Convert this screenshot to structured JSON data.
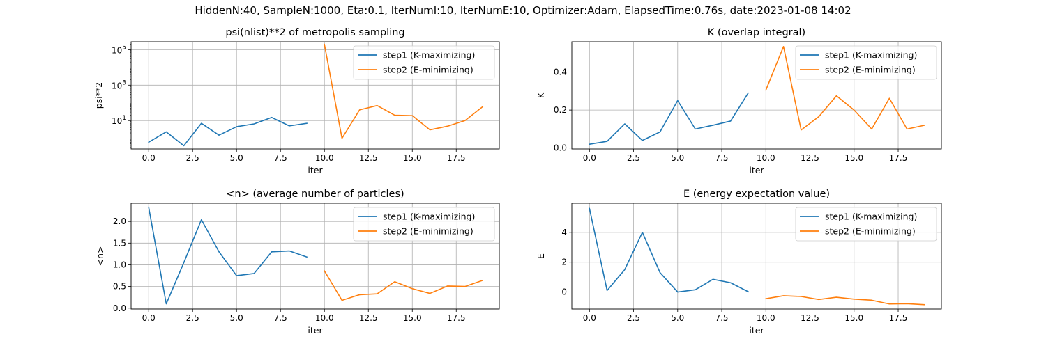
{
  "suptitle": "HiddenN:40, SampleN:1000, Eta:0.1, IterNumI:10, IterNumE:10, Optimizer:Adam, ElapsedTime:0.76s, date:2023-01-08  14:02",
  "colors": {
    "step1": "#1f77b4",
    "step2": "#ff7f0e",
    "grid": "#b0b0b0"
  },
  "chart_data": [
    {
      "type": "line",
      "title": "psi(nlist)**2 of metropolis sampling",
      "xlabel": "iter",
      "ylabel": "psi**2",
      "yscale": "log",
      "xlim": [
        -1,
        19.95
      ],
      "ylim": [
        0.25,
        280000
      ],
      "xticks": [
        0,
        2.5,
        5,
        7.5,
        10,
        12.5,
        15,
        17.5
      ],
      "xtick_labels": [
        "0.0",
        "2.5",
        "5.0",
        "7.5",
        "10.0",
        "12.5",
        "15.0",
        "17.5"
      ],
      "yticks": [
        10,
        1000,
        100000
      ],
      "ytick_labels": [
        "10^1",
        "10^3",
        "10^5"
      ],
      "grid": true,
      "legend_position": "upper right",
      "series": [
        {
          "name": "step1 (K-maximizing)",
          "color": "#1f77b4",
          "x": [
            0,
            1,
            2,
            3,
            4,
            5,
            6,
            7,
            8,
            9
          ],
          "y": [
            0.6,
            2.3,
            0.38,
            7.0,
            1.5,
            4.5,
            6.5,
            15,
            5.0,
            7.0
          ]
        },
        {
          "name": "step2 (E-minimizing)",
          "color": "#ff7f0e",
          "x": [
            10,
            11,
            12,
            13,
            14,
            15,
            16,
            17,
            18,
            19
          ],
          "y": [
            200000,
            1.0,
            40,
            70,
            20,
            19,
            3.0,
            4.8,
            10,
            60
          ]
        }
      ]
    },
    {
      "type": "line",
      "title": "K (overlap integral)",
      "xlabel": "iter",
      "ylabel": "K",
      "yscale": "linear",
      "xlim": [
        -1,
        19.95
      ],
      "ylim": [
        -0.005,
        0.56
      ],
      "xticks": [
        0,
        2.5,
        5,
        7.5,
        10,
        12.5,
        15,
        17.5
      ],
      "xtick_labels": [
        "0.0",
        "2.5",
        "5.0",
        "7.5",
        "10.0",
        "12.5",
        "15.0",
        "17.5"
      ],
      "yticks": [
        0,
        0.2,
        0.4
      ],
      "ytick_labels": [
        "0.0",
        "0.2",
        "0.4"
      ],
      "grid": true,
      "legend_position": "upper right",
      "series": [
        {
          "name": "step1 (K-maximizing)",
          "color": "#1f77b4",
          "x": [
            0,
            1,
            2,
            3,
            4,
            5,
            6,
            7,
            8,
            9
          ],
          "y": [
            0.02,
            0.035,
            0.127,
            0.04,
            0.085,
            0.25,
            0.1,
            0.12,
            0.142,
            0.29
          ]
        },
        {
          "name": "step2 (E-minimizing)",
          "color": "#ff7f0e",
          "x": [
            10,
            11,
            12,
            13,
            14,
            15,
            16,
            17,
            18,
            19
          ],
          "y": [
            0.305,
            0.535,
            0.095,
            0.165,
            0.275,
            0.2,
            0.1,
            0.262,
            0.1,
            0.12
          ]
        }
      ]
    },
    {
      "type": "line",
      "title": "<n> (average number of particles)",
      "xlabel": "iter",
      "ylabel": "<n>",
      "yscale": "linear",
      "xlim": [
        -1,
        19.95
      ],
      "ylim": [
        -0.02,
        2.42
      ],
      "xticks": [
        0,
        2.5,
        5,
        7.5,
        10,
        12.5,
        15,
        17.5
      ],
      "xtick_labels": [
        "0.0",
        "2.5",
        "5.0",
        "7.5",
        "10.0",
        "12.5",
        "15.0",
        "17.5"
      ],
      "yticks": [
        0,
        0.5,
        1.0,
        1.5,
        2.0
      ],
      "ytick_labels": [
        "0.0",
        "0.5",
        "1.0",
        "1.5",
        "2.0"
      ],
      "grid": true,
      "legend_position": "upper right",
      "series": [
        {
          "name": "step1 (K-maximizing)",
          "color": "#1f77b4",
          "x": [
            0,
            1,
            2,
            3,
            4,
            5,
            6,
            7,
            8,
            9
          ],
          "y": [
            2.33,
            0.1,
            1.05,
            2.04,
            1.3,
            0.75,
            0.8,
            1.3,
            1.32,
            1.18
          ]
        },
        {
          "name": "step2 (E-minimizing)",
          "color": "#ff7f0e",
          "x": [
            10,
            11,
            12,
            13,
            14,
            15,
            16,
            17,
            18,
            19
          ],
          "y": [
            0.86,
            0.18,
            0.31,
            0.33,
            0.61,
            0.45,
            0.34,
            0.51,
            0.5,
            0.64
          ]
        }
      ]
    },
    {
      "type": "line",
      "title": "E (energy expectation value)",
      "xlabel": "iter",
      "ylabel": "E",
      "yscale": "linear",
      "xlim": [
        -1,
        19.95
      ],
      "ylim": [
        -1.14,
        5.95
      ],
      "xticks": [
        0,
        2.5,
        5,
        7.5,
        10,
        12.5,
        15,
        17.5
      ],
      "xtick_labels": [
        "0.0",
        "2.5",
        "5.0",
        "7.5",
        "10.0",
        "12.5",
        "15.0",
        "17.5"
      ],
      "yticks": [
        0,
        2,
        4
      ],
      "ytick_labels": [
        "0",
        "2",
        "4"
      ],
      "grid": true,
      "legend_position": "upper right",
      "series": [
        {
          "name": "step1 (K-maximizing)",
          "color": "#1f77b4",
          "x": [
            0,
            1,
            2,
            3,
            4,
            5,
            6,
            7,
            8,
            9
          ],
          "y": [
            5.6,
            0.1,
            1.5,
            4.0,
            1.3,
            0.0,
            0.15,
            0.85,
            0.62,
            0.02
          ]
        },
        {
          "name": "step2 (E-minimizing)",
          "color": "#ff7f0e",
          "x": [
            10,
            11,
            12,
            13,
            14,
            15,
            16,
            17,
            18,
            19
          ],
          "y": [
            -0.45,
            -0.25,
            -0.3,
            -0.5,
            -0.35,
            -0.48,
            -0.55,
            -0.8,
            -0.78,
            -0.85
          ]
        }
      ]
    }
  ]
}
